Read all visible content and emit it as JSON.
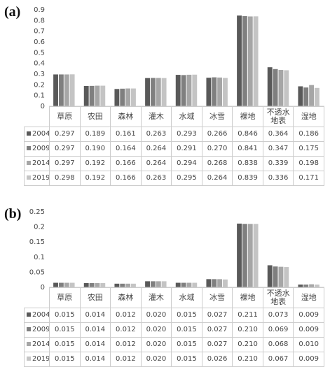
{
  "chart_data": [
    {
      "type": "bar",
      "label": "(a)",
      "categories": [
        "草原",
        "农田",
        "森林",
        "灌木",
        "水域",
        "冰雪",
        "裸地",
        "不透水地表",
        "湿地"
      ],
      "series": [
        {
          "name": "2004",
          "color": "#595959",
          "values": [
            0.297,
            0.189,
            0.161,
            0.263,
            0.293,
            0.266,
            0.846,
            0.364,
            0.186
          ],
          "value_labels": [
            "0.297",
            "0.189",
            "0.161",
            "0.263",
            "0.293",
            "0.266",
            "0.846",
            "0.364",
            "0.186"
          ]
        },
        {
          "name": "2009",
          "color": "#7f7f7f",
          "values": [
            0.297,
            0.19,
            0.164,
            0.264,
            0.291,
            0.27,
            0.841,
            0.347,
            0.175
          ],
          "value_labels": [
            "0.297",
            "0.190",
            "0.164",
            "0.264",
            "0.291",
            "0.270",
            "0.841",
            "0.347",
            "0.175"
          ]
        },
        {
          "name": "2014",
          "color": "#a6a6a6",
          "values": [
            0.297,
            0.192,
            0.166,
            0.264,
            0.294,
            0.268,
            0.838,
            0.339,
            0.198
          ],
          "value_labels": [
            "0.297",
            "0.192",
            "0.166",
            "0.264",
            "0.294",
            "0.268",
            "0.838",
            "0.339",
            "0.198"
          ]
        },
        {
          "name": "2019",
          "color": "#c4c4c4",
          "values": [
            0.298,
            0.192,
            0.166,
            0.263,
            0.295,
            0.264,
            0.839,
            0.336,
            0.171
          ],
          "value_labels": [
            "0.298",
            "0.192",
            "0.166",
            "0.263",
            "0.295",
            "0.264",
            "0.839",
            "0.336",
            "0.171"
          ]
        }
      ],
      "ylim": [
        0,
        0.9
      ],
      "yticks": [
        0,
        0.1,
        0.2,
        0.3,
        0.4,
        0.5,
        0.6,
        0.7,
        0.8,
        0.9
      ],
      "grid": false
    },
    {
      "type": "bar",
      "label": "(b)",
      "categories": [
        "草原",
        "农田",
        "森林",
        "灌木",
        "水域",
        "冰雪",
        "裸地",
        "不透水地表",
        "湿地"
      ],
      "series": [
        {
          "name": "2004",
          "color": "#595959",
          "values": [
            0.015,
            0.014,
            0.012,
            0.02,
            0.015,
            0.027,
            0.211,
            0.073,
            0.009
          ],
          "value_labels": [
            "0.015",
            "0.014",
            "0.012",
            "0.020",
            "0.015",
            "0.027",
            "0.211",
            "0.073",
            "0.009"
          ]
        },
        {
          "name": "2009",
          "color": "#7f7f7f",
          "values": [
            0.015,
            0.014,
            0.012,
            0.02,
            0.015,
            0.027,
            0.21,
            0.069,
            0.009
          ],
          "value_labels": [
            "0.015",
            "0.014",
            "0.012",
            "0.020",
            "0.015",
            "0.027",
            "0.210",
            "0.069",
            "0.009"
          ]
        },
        {
          "name": "2014",
          "color": "#a6a6a6",
          "values": [
            0.015,
            0.014,
            0.012,
            0.02,
            0.015,
            0.027,
            0.21,
            0.068,
            0.01
          ],
          "value_labels": [
            "0.015",
            "0.014",
            "0.012",
            "0.020",
            "0.015",
            "0.027",
            "0.210",
            "0.068",
            "0.010"
          ]
        },
        {
          "name": "2019",
          "color": "#c4c4c4",
          "values": [
            0.015,
            0.014,
            0.012,
            0.02,
            0.015,
            0.026,
            0.21,
            0.067,
            0.009
          ],
          "value_labels": [
            "0.015",
            "0.014",
            "0.012",
            "0.020",
            "0.015",
            "0.026",
            "0.210",
            "0.067",
            "0.009"
          ]
        }
      ],
      "ylim": [
        0,
        0.25
      ],
      "yticks": [
        0,
        0.05,
        0.1,
        0.15,
        0.2,
        0.25
      ],
      "grid": false
    }
  ]
}
